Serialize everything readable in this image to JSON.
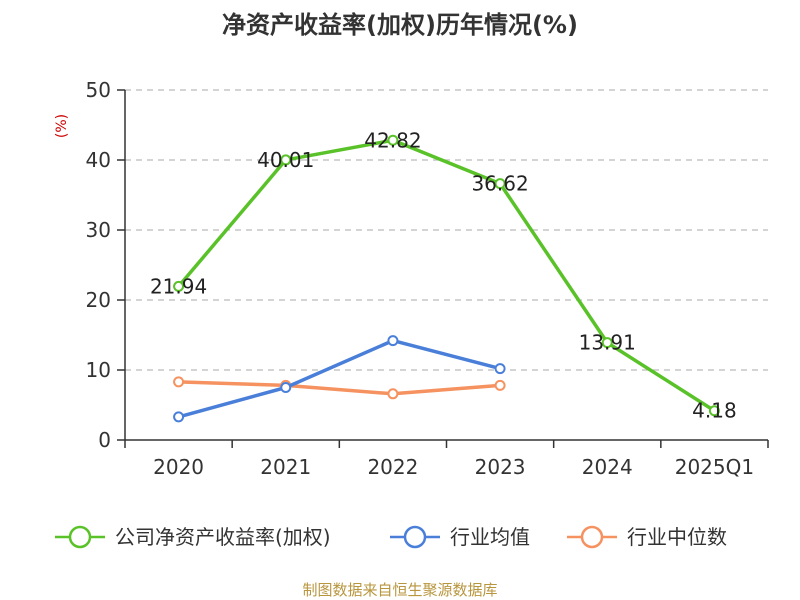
{
  "chart_data": {
    "type": "line",
    "title": "净资产收益率(加权)历年情况(%)",
    "ylabel": "(%)",
    "categories": [
      "2020",
      "2021",
      "2022",
      "2023",
      "2024",
      "2025Q1"
    ],
    "ylim": [
      0,
      50
    ],
    "yticks": [
      0,
      10,
      20,
      30,
      40,
      50
    ],
    "grid": true,
    "legend_position": "bottom",
    "series": [
      {
        "name": "公司净资产收益率(加权)",
        "values": [
          21.94,
          40.01,
          42.82,
          36.62,
          13.91,
          4.18
        ],
        "color": "#5ac229",
        "labels": [
          "21.94",
          "40.01",
          "42.82",
          "36.62",
          "13.91",
          "4.18"
        ]
      },
      {
        "name": "行业均值",
        "values": [
          3.3,
          7.5,
          14.2,
          10.2,
          null,
          null
        ],
        "color": "#4a7fd9"
      },
      {
        "name": "行业中位数",
        "values": [
          8.3,
          7.8,
          6.6,
          7.8,
          null,
          null
        ],
        "color": "#f59260"
      }
    ],
    "source": "制图数据来自恒生聚源数据库"
  },
  "colors": {
    "title": "#333333",
    "ylabel": "#cc0000",
    "grid": "#bbbbbb",
    "axis": "#333333",
    "source": "#b8963e"
  }
}
